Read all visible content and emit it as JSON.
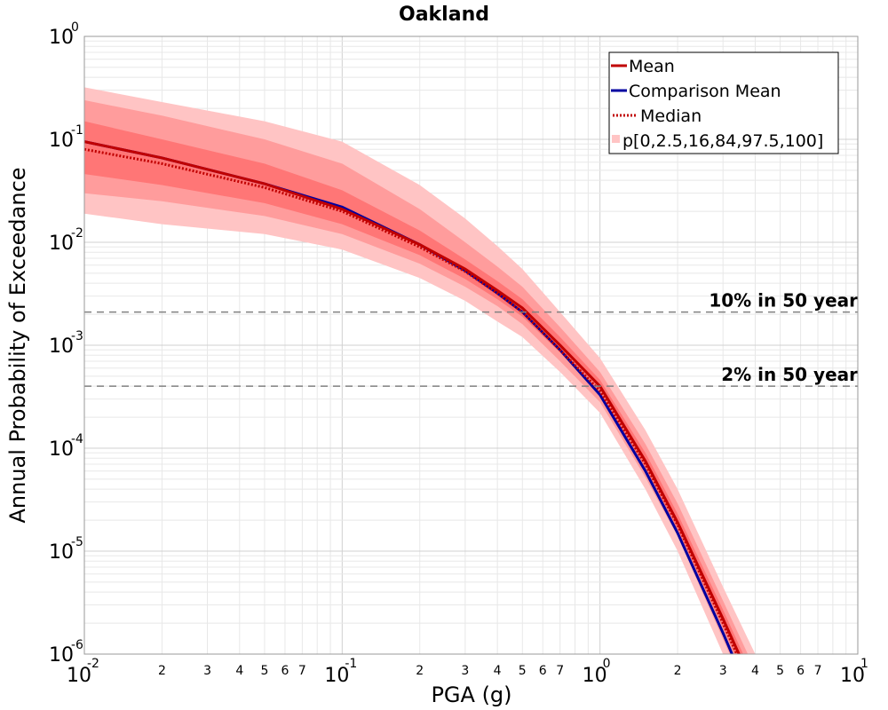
{
  "chart_data": {
    "type": "line",
    "title": "Oakland",
    "xlabel": "PGA (g)",
    "ylabel": "Annual Probability of Exceedance",
    "xscale": "log",
    "yscale": "log",
    "xlim": [
      0.01,
      10
    ],
    "ylim": [
      1e-06,
      1
    ],
    "grid": true,
    "legend_position": "top-right",
    "x_major_tick_labels": [
      {
        "base": "10",
        "exp": "-2"
      },
      {
        "base": "10",
        "exp": "-1"
      },
      {
        "base": "10",
        "exp": "0"
      },
      {
        "base": "10",
        "exp": "1"
      }
    ],
    "y_major_tick_labels": [
      {
        "base": "10",
        "exp": "0"
      },
      {
        "base": "10",
        "exp": "-1"
      },
      {
        "base": "10",
        "exp": "-2"
      },
      {
        "base": "10",
        "exp": "-3"
      },
      {
        "base": "10",
        "exp": "-4"
      },
      {
        "base": "10",
        "exp": "-5"
      },
      {
        "base": "10",
        "exp": "-6"
      }
    ],
    "x_minor_tick_labels": [
      "2",
      "3",
      "4",
      "5",
      "6",
      "7"
    ],
    "x": [
      0.01,
      0.02,
      0.05,
      0.1,
      0.2,
      0.3,
      0.4,
      0.5,
      0.7,
      1.0,
      1.5,
      2.0,
      3.0,
      4.0
    ],
    "series": [
      {
        "name": "Mean",
        "color": "#c00000",
        "style": "solid",
        "values": [
          0.095,
          0.066,
          0.037,
          0.021,
          0.0095,
          0.0055,
          0.0034,
          0.0023,
          0.001,
          0.0004,
          7.5e-05,
          1.9e-05,
          2.2e-06,
          4.5e-07
        ]
      },
      {
        "name": "Comparison Mean",
        "color": "#0000a0",
        "style": "solid",
        "values": [
          0.095,
          0.066,
          0.037,
          0.022,
          0.0095,
          0.0053,
          0.0032,
          0.0021,
          0.0009,
          0.00033,
          6e-05,
          1.5e-05,
          1.6e-06,
          3e-07
        ]
      },
      {
        "name": "Median",
        "color": "#c00000",
        "style": "dotted",
        "values": [
          0.08,
          0.058,
          0.034,
          0.02,
          0.009,
          0.0052,
          0.0032,
          0.0021,
          0.0009,
          0.00036,
          7e-05,
          1.8e-05,
          2e-06,
          4e-07
        ]
      },
      {
        "name": "p[0,2.5,16,84,97.5,100]",
        "color": "#ffb0b0",
        "style": "band",
        "bands": [
          {
            "lower": [
              0.019,
              0.015,
              0.012,
              0.0085,
              0.0045,
              0.0027,
              0.0017,
              0.0012,
              0.00055,
              0.00022,
              4e-05,
              1e-05,
              1e-06,
              2e-07
            ],
            "upper": [
              0.32,
              0.23,
              0.15,
              0.095,
              0.036,
              0.017,
              0.0092,
              0.0055,
              0.0021,
              0.00075,
              0.00015,
              4e-05,
              4.5e-06,
              1e-06
            ],
            "color": "#ffc4c4"
          },
          {
            "lower": [
              0.03,
              0.025,
              0.018,
              0.012,
              0.0062,
              0.0037,
              0.0024,
              0.0016,
              0.0007,
              0.00028,
              5.2e-05,
              1.4e-05,
              1.4e-06,
              2.8e-07
            ],
            "upper": [
              0.24,
              0.17,
              0.1,
              0.058,
              0.021,
              0.01,
              0.0058,
              0.0037,
              0.0015,
              0.00055,
              0.00011,
              2.9e-05,
              3.3e-06,
              7e-07
            ],
            "color": "#ff9c9c"
          },
          {
            "lower": [
              0.046,
              0.036,
              0.024,
              0.015,
              0.0075,
              0.0044,
              0.0028,
              0.0019,
              0.00085,
              0.00033,
              6.2e-05,
              1.6e-05,
              1.8e-06,
              3.6e-07
            ],
            "upper": [
              0.15,
              0.1,
              0.058,
              0.032,
              0.013,
              0.0068,
              0.0042,
              0.0028,
              0.0012,
              0.00046,
              9e-05,
              2.3e-05,
              2.7e-06,
              5.5e-07
            ],
            "color": "#ff7676"
          }
        ]
      }
    ],
    "reference_lines": [
      {
        "label": "10% in 50 year",
        "y": 0.0021
      },
      {
        "label": "2% in 50 year",
        "y": 0.0004
      }
    ]
  }
}
